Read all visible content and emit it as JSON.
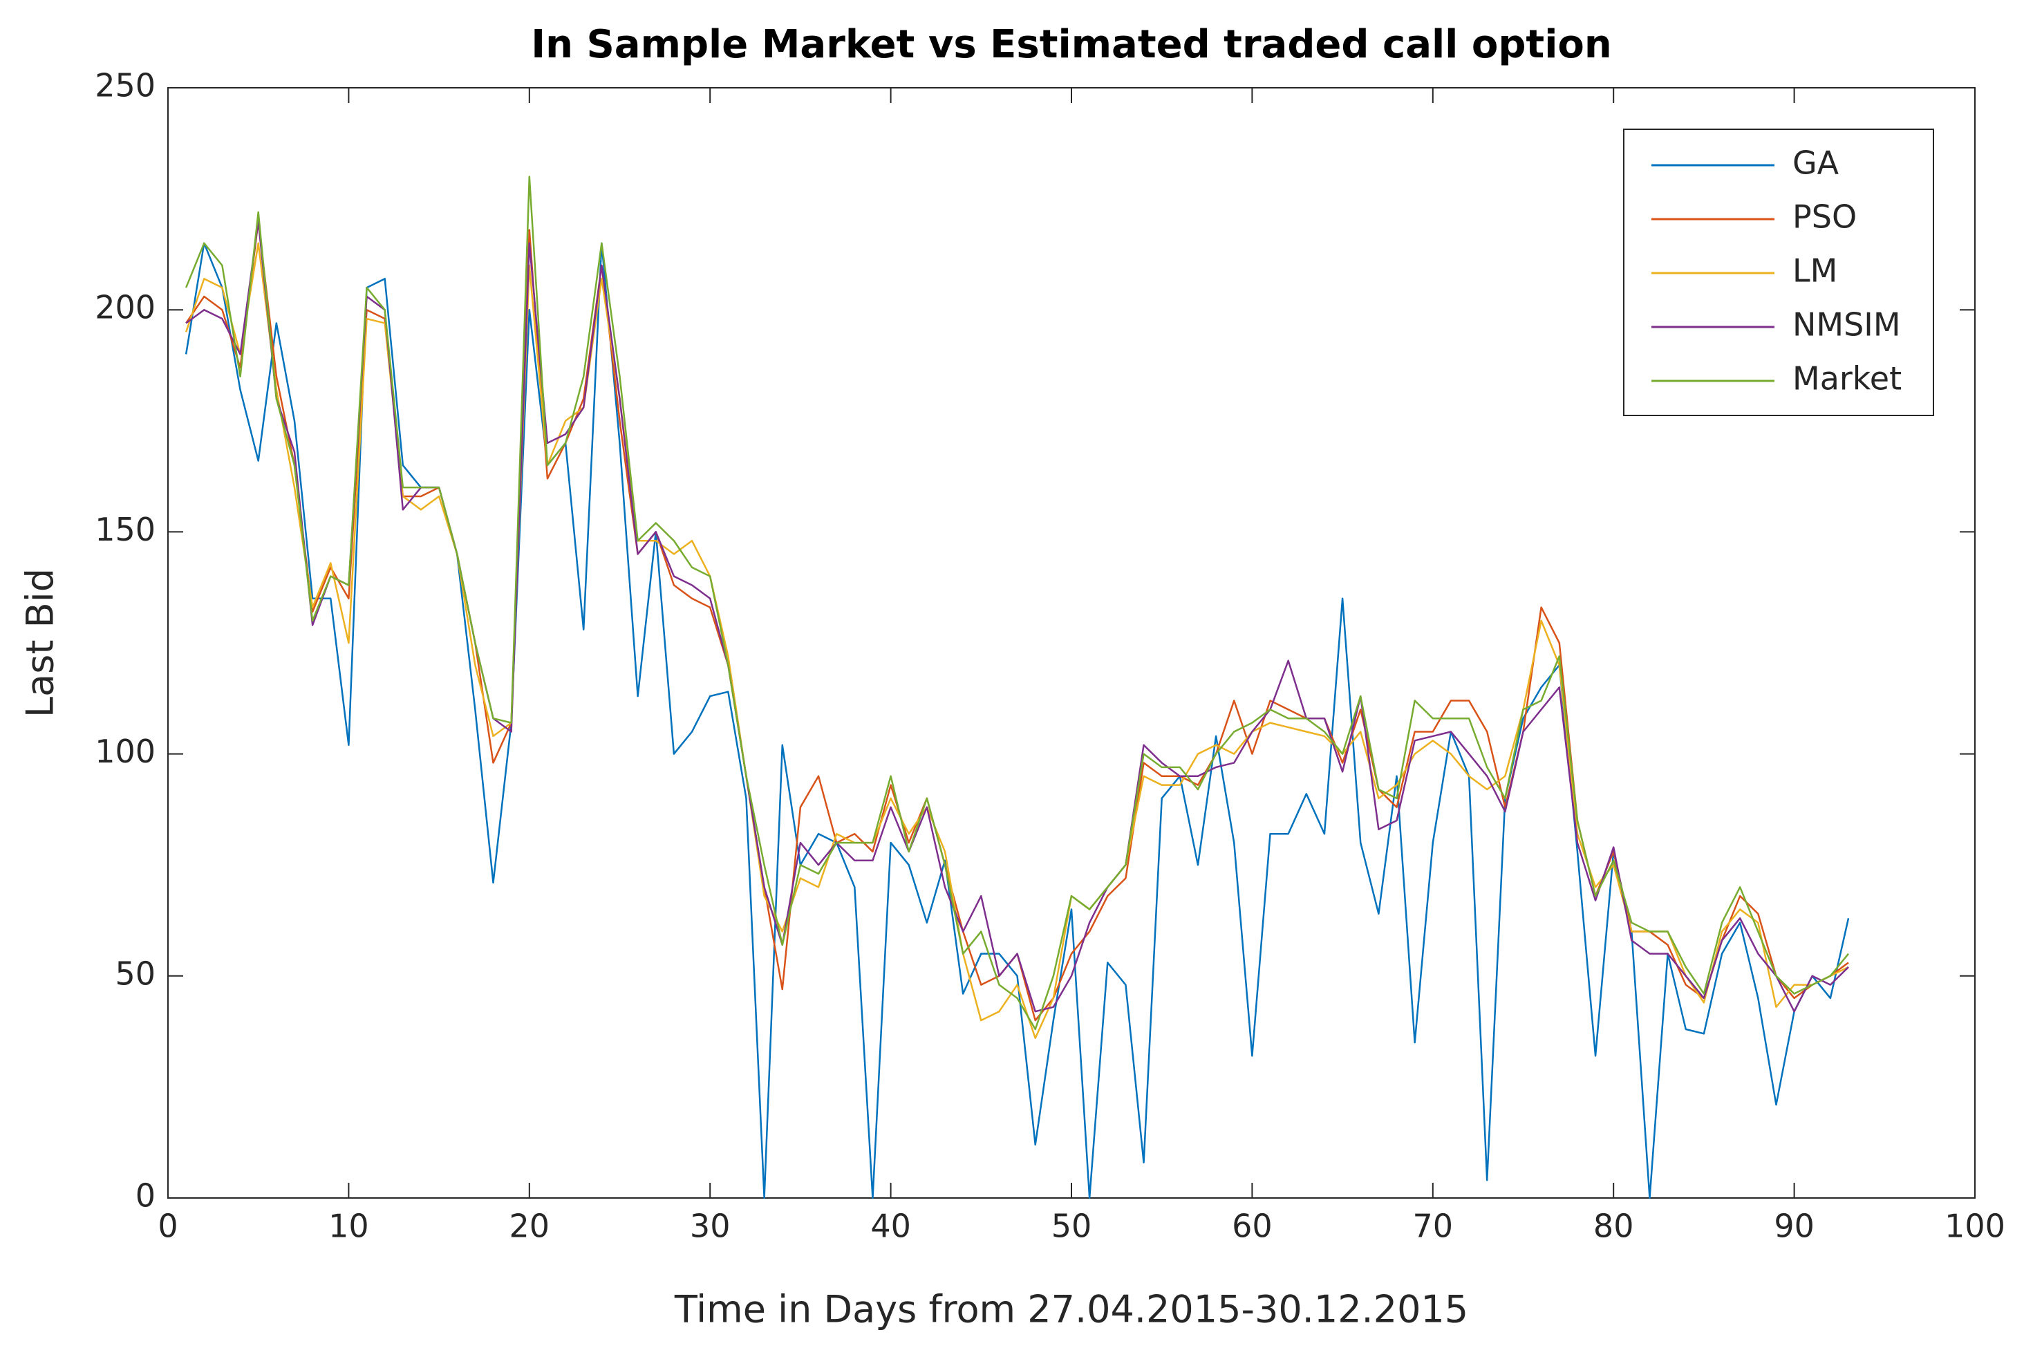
{
  "chart_data": {
    "type": "line",
    "title": "In Sample Market vs Estimated traded call option",
    "xlabel": "Time in Days from 27.04.2015-30.12.2015",
    "ylabel": "Last Bid",
    "x": [
      1,
      2,
      3,
      4,
      5,
      6,
      7,
      8,
      9,
      10,
      11,
      12,
      13,
      14,
      15,
      16,
      17,
      18,
      19,
      20,
      21,
      22,
      23,
      24,
      25,
      26,
      27,
      28,
      29,
      30,
      31,
      32,
      33,
      34,
      35,
      36,
      37,
      38,
      39,
      40,
      41,
      42,
      43,
      44,
      45,
      46,
      47,
      48,
      49,
      50,
      51,
      52,
      53,
      54,
      55,
      56,
      57,
      58,
      59,
      60,
      61,
      62,
      63,
      64,
      65,
      66,
      67,
      68,
      69,
      70,
      71,
      72,
      73,
      74,
      75,
      76,
      77,
      78,
      79,
      80,
      81,
      82,
      83,
      84,
      85,
      86,
      87,
      88,
      89,
      90,
      91,
      92,
      93
    ],
    "series": [
      {
        "name": "GA",
        "color": "#0072bd",
        "values": [
          190,
          215,
          205,
          182,
          166,
          197,
          175,
          135,
          135,
          102,
          205,
          207,
          165,
          160,
          160,
          145,
          110,
          71,
          107,
          200,
          165,
          170,
          128,
          215,
          170,
          113,
          150,
          100,
          105,
          113,
          114,
          90,
          0,
          102,
          75,
          82,
          80,
          70,
          0,
          80,
          75,
          62,
          76,
          46,
          55,
          55,
          50,
          12,
          40,
          65,
          0,
          53,
          48,
          8,
          90,
          95,
          75,
          104,
          80,
          32,
          82,
          82,
          91,
          82,
          135,
          80,
          64,
          95,
          35,
          80,
          105,
          95,
          4,
          90,
          108,
          115,
          120,
          78,
          32,
          78,
          60,
          0,
          55,
          38,
          37,
          55,
          62,
          45,
          21,
          42,
          50,
          45,
          63
        ]
      },
      {
        "name": "PSO",
        "color": "#d95319",
        "values": [
          197,
          203,
          200,
          187,
          220,
          185,
          165,
          132,
          142,
          135,
          200,
          198,
          158,
          158,
          160,
          145,
          125,
          98,
          107,
          218,
          162,
          170,
          180,
          210,
          175,
          145,
          150,
          138,
          135,
          133,
          120,
          95,
          70,
          47,
          88,
          95,
          80,
          82,
          78,
          93,
          80,
          90,
          75,
          60,
          48,
          50,
          55,
          40,
          45,
          55,
          60,
          68,
          72,
          98,
          95,
          95,
          93,
          100,
          112,
          100,
          112,
          110,
          108,
          108,
          98,
          110,
          92,
          88,
          105,
          105,
          112,
          112,
          105,
          88,
          105,
          133,
          125,
          85,
          68,
          78,
          60,
          60,
          57,
          48,
          45,
          58,
          68,
          64,
          50,
          45,
          48,
          50,
          53
        ]
      },
      {
        "name": "LM",
        "color": "#edb120",
        "values": [
          195,
          207,
          205,
          190,
          215,
          182,
          160,
          133,
          143,
          125,
          198,
          197,
          158,
          155,
          158,
          145,
          120,
          104,
          107,
          210,
          165,
          175,
          178,
          207,
          180,
          148,
          148,
          145,
          148,
          140,
          122,
          95,
          68,
          60,
          72,
          70,
          82,
          80,
          80,
          90,
          82,
          88,
          78,
          55,
          40,
          42,
          48,
          36,
          45,
          68,
          65,
          70,
          75,
          95,
          93,
          93,
          100,
          102,
          100,
          105,
          107,
          106,
          105,
          104,
          100,
          105,
          90,
          93,
          100,
          103,
          100,
          95,
          92,
          95,
          110,
          130,
          120,
          82,
          70,
          75,
          60,
          60,
          60,
          50,
          44,
          60,
          65,
          62,
          43,
          48,
          48,
          50,
          52
        ]
      },
      {
        "name": "NMSIM",
        "color": "#7e2f8e",
        "values": [
          197,
          200,
          198,
          190,
          220,
          180,
          168,
          129,
          140,
          138,
          203,
          200,
          155,
          160,
          160,
          145,
          125,
          108,
          105,
          215,
          170,
          172,
          178,
          210,
          180,
          145,
          150,
          140,
          138,
          135,
          120,
          95,
          70,
          57,
          80,
          75,
          80,
          76,
          76,
          88,
          78,
          88,
          70,
          60,
          68,
          50,
          55,
          42,
          43,
          50,
          62,
          70,
          75,
          102,
          98,
          95,
          95,
          97,
          98,
          105,
          110,
          121,
          108,
          108,
          96,
          113,
          83,
          85,
          103,
          104,
          105,
          100,
          95,
          87,
          105,
          110,
          115,
          80,
          67,
          79,
          58,
          55,
          55,
          50,
          45,
          58,
          63,
          55,
          50,
          42,
          50,
          48,
          52
        ]
      },
      {
        "name": "Market",
        "color": "#77ac30",
        "values": [
          205,
          215,
          210,
          185,
          222,
          180,
          165,
          130,
          140,
          138,
          205,
          200,
          160,
          160,
          160,
          145,
          125,
          108,
          107,
          230,
          165,
          170,
          185,
          215,
          185,
          148,
          152,
          148,
          142,
          140,
          120,
          95,
          75,
          57,
          75,
          73,
          80,
          80,
          80,
          95,
          78,
          90,
          75,
          55,
          60,
          48,
          45,
          38,
          50,
          68,
          65,
          70,
          75,
          100,
          97,
          97,
          92,
          100,
          105,
          107,
          110,
          108,
          108,
          105,
          100,
          113,
          92,
          90,
          112,
          108,
          108,
          108,
          97,
          90,
          110,
          112,
          122,
          85,
          68,
          76,
          62,
          60,
          60,
          52,
          46,
          62,
          70,
          60,
          50,
          46,
          48,
          50,
          55
        ]
      }
    ],
    "xlim": [
      0,
      100
    ],
    "xticks": [
      0,
      10,
      20,
      30,
      40,
      50,
      60,
      70,
      80,
      90,
      100
    ],
    "ylim": [
      0,
      250
    ],
    "yticks": [
      0,
      50,
      100,
      150,
      200,
      250
    ],
    "legend": "upper right"
  }
}
